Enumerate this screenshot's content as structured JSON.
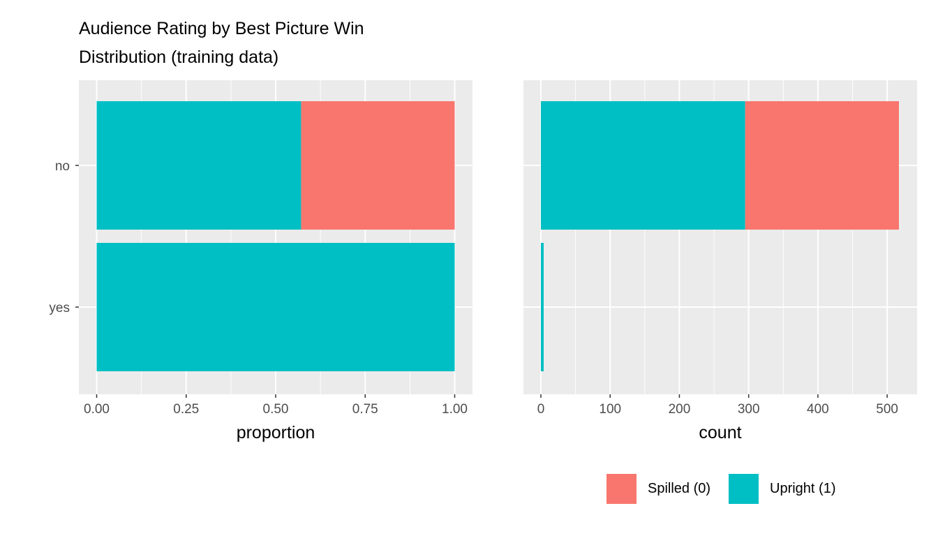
{
  "title": "Audience Rating by Best Picture Win",
  "subtitle": "Distribution (training data)",
  "colors": {
    "spilled": "#F8766D",
    "upright": "#00BFC4",
    "panel": "#EBEBEB",
    "grid": "#FFFFFF",
    "axis_text": "#4D4D4D"
  },
  "legend": {
    "position": "bottom-right",
    "items": [
      {
        "label": "Spilled (0)",
        "color": "#F8766D"
      },
      {
        "label": "Upright (1)",
        "color": "#00BFC4"
      }
    ]
  },
  "chart_data": [
    {
      "type": "bar",
      "orientation": "horizontal",
      "stacked": true,
      "categories": [
        "no",
        "yes"
      ],
      "xlabel": "proportion",
      "ylabel": "",
      "xlim": [
        0,
        1
      ],
      "xticks": [
        0,
        0.25,
        0.5,
        0.75,
        1
      ],
      "xtick_labels": [
        "0.00",
        "0.25",
        "0.50",
        "0.75",
        "1.00"
      ],
      "grid": true,
      "series": [
        {
          "name": "Upright (1)",
          "values": [
            0.571,
            1.0
          ]
        },
        {
          "name": "Spilled (0)",
          "values": [
            0.429,
            0.0
          ]
        }
      ]
    },
    {
      "type": "bar",
      "orientation": "horizontal",
      "stacked": true,
      "categories": [
        "no",
        "yes"
      ],
      "xlabel": "count",
      "ylabel": "",
      "xlim": [
        0,
        518
      ],
      "xticks": [
        0,
        100,
        200,
        300,
        400,
        500
      ],
      "xtick_labels": [
        "0",
        "100",
        "200",
        "300",
        "400",
        "500"
      ],
      "grid": true,
      "series": [
        {
          "name": "Upright (1)",
          "values": [
            295,
            4
          ]
        },
        {
          "name": "Spilled (0)",
          "values": [
            222,
            0
          ]
        }
      ]
    }
  ]
}
